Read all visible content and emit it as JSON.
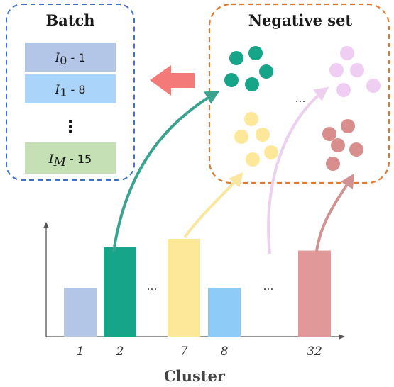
{
  "batch": {
    "title": "Batch",
    "items": [
      {
        "var": "I",
        "sub": "0",
        "value": "1",
        "color": "#b4c6e7"
      },
      {
        "var": "I",
        "sub": "1",
        "value": "8",
        "color": "#aad4fa"
      },
      {
        "var": "I",
        "sub": "M",
        "value": "15",
        "color": "#c5e0b4"
      }
    ],
    "ellipsis": "⋮",
    "border_color": "#4472c4"
  },
  "negative_set": {
    "title": "Negative set",
    "ellipsis": "…",
    "border_color": "#e07a2e",
    "clusters": [
      {
        "name": "teal",
        "color": "#17a589"
      },
      {
        "name": "yellow",
        "color": "#fde89a"
      },
      {
        "name": "lilac",
        "color": "#f0cdf2"
      },
      {
        "name": "red",
        "color": "#d98e8e"
      }
    ]
  },
  "arrow_color": "#f47a7a",
  "chart_data": {
    "type": "bar",
    "categories": [
      "1",
      "2",
      "7",
      "8",
      "32"
    ],
    "values": [
      0.5,
      0.92,
      1.0,
      0.5,
      0.88
    ],
    "colors": [
      "#b4c6e7",
      "#17a589",
      "#fde89a",
      "#8ecbf7",
      "#e19898"
    ],
    "xlabel": "Cluster",
    "ylabel": "",
    "ellipses": [
      "…",
      "…"
    ],
    "grid": false
  }
}
